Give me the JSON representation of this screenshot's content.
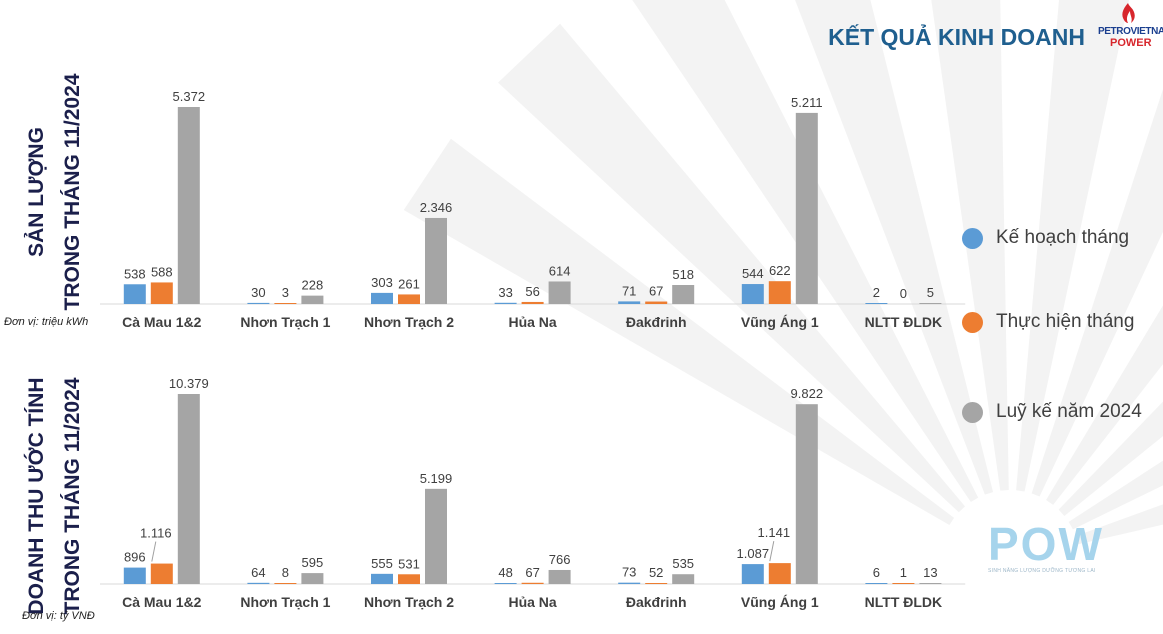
{
  "header": {
    "title": "KẾT QUẢ KINH DOANH"
  },
  "logo": {
    "line1": "PETROVIETNAM",
    "line2": "POWER"
  },
  "sections": {
    "top": {
      "line1": "SẢN LƯỢNG",
      "line2": "TRONG THÁNG 11/2024",
      "unit": "Đơn vị: triệu kWh"
    },
    "bottom": {
      "line1": "DOANH THU ƯỚC TÍNH",
      "line2": "TRONG THÁNG 11/2024",
      "unit": "Đơn vị: tỷ VNĐ"
    }
  },
  "legend": [
    {
      "label": "Kế hoạch tháng",
      "color": "#5b9bd5"
    },
    {
      "label": "Thực hiện tháng",
      "color": "#ed7d31"
    },
    {
      "label": "Luỹ kế năm 2024",
      "color": "#a5a5a5"
    }
  ],
  "pow": {
    "text": "POW",
    "tagline": "SINH NĂNG LƯỢNG DƯỠNG TƯƠNG LAI"
  },
  "chart_data": [
    {
      "type": "bar",
      "title": "",
      "categories": [
        "Cà Mau 1&2",
        "Nhơn Trạch 1",
        "Nhơn Trạch 2",
        "Hủa Na",
        "Đakđrinh",
        "Vũng Áng 1",
        "NLTT ĐLDK"
      ],
      "series": [
        {
          "name": "Kế hoạch tháng",
          "values": [
            538,
            30,
            303,
            33,
            71,
            544,
            2
          ],
          "labels": [
            "538",
            "30",
            "303",
            "33",
            "71",
            "544",
            "2"
          ]
        },
        {
          "name": "Thực hiện tháng",
          "values": [
            588,
            3,
            261,
            56,
            67,
            622,
            0
          ],
          "labels": [
            "588",
            "3",
            "261",
            "56",
            "67",
            "622",
            "0"
          ]
        },
        {
          "name": "Luỹ kế năm 2024",
          "values": [
            5372,
            228,
            2346,
            614,
            518,
            5211,
            5
          ],
          "labels": [
            "5.372",
            "228",
            "2.346",
            "614",
            "518",
            "5.211",
            "5"
          ]
        }
      ],
      "ylim": [
        0,
        5372
      ],
      "legend": "right",
      "grid": false
    },
    {
      "type": "bar",
      "title": "",
      "categories": [
        "Cà Mau 1&2",
        "Nhơn Trạch 1",
        "Nhơn Trạch 2",
        "Hủa Na",
        "Đakđrinh",
        "Vũng Áng 1",
        "NLTT ĐLDK"
      ],
      "series": [
        {
          "name": "Kế hoạch tháng",
          "values": [
            896,
            64,
            555,
            48,
            73,
            1087,
            6
          ],
          "labels": [
            "896",
            "64",
            "555",
            "48",
            "73",
            "1.087",
            "6"
          ]
        },
        {
          "name": "Thực hiện tháng",
          "values": [
            1116,
            8,
            531,
            67,
            52,
            1141,
            1
          ],
          "labels": [
            "1.116",
            "8",
            "531",
            "67",
            "52",
            "1.141",
            "1"
          ]
        },
        {
          "name": "Luỹ kế năm 2024",
          "values": [
            10379,
            595,
            5199,
            766,
            535,
            9822,
            13
          ],
          "labels": [
            "10.379",
            "595",
            "5.199",
            "766",
            "535",
            "9.822",
            "13"
          ]
        }
      ],
      "ylim": [
        0,
        10379
      ],
      "legend": "right",
      "grid": false
    }
  ]
}
